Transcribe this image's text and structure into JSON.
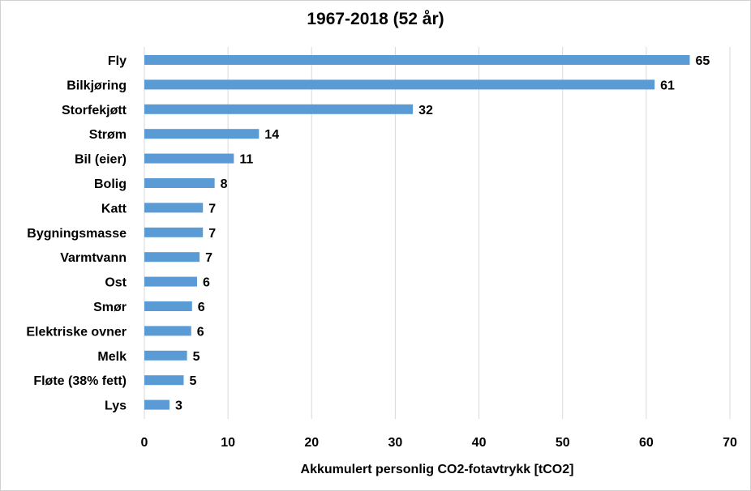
{
  "chart_data": {
    "type": "bar",
    "orientation": "horizontal",
    "title": "1967-2018 (52 år)",
    "xlabel": "Akkumulert personlig CO2-fotavtrykk [tCO2]",
    "ylabel": "",
    "categories": [
      "Fly",
      "Bilkjøring",
      "Storfekjøtt",
      "Strøm",
      "Bil (eier)",
      "Bolig",
      "Katt",
      "Bygningsmasse",
      "Varmtvann",
      "Ost",
      "Smør",
      "Elektriske ovner",
      "Melk",
      "Fløte (38% fett)",
      "Lys"
    ],
    "values": [
      65,
      61,
      32,
      14,
      11,
      8,
      7,
      7,
      7,
      6,
      6,
      6,
      5,
      5,
      3
    ],
    "bar_values": [
      65.2,
      61.0,
      32.1,
      13.7,
      10.7,
      8.4,
      7.0,
      7.0,
      6.6,
      6.3,
      5.7,
      5.6,
      5.1,
      4.7,
      3.0
    ],
    "xlim": [
      0,
      70
    ],
    "xticks": [
      0,
      10,
      20,
      30,
      40,
      50,
      60,
      70
    ],
    "grid": "vertical",
    "legend": "none",
    "bar_color": "#5b9bd5",
    "grid_color": "#d9d9d9"
  }
}
